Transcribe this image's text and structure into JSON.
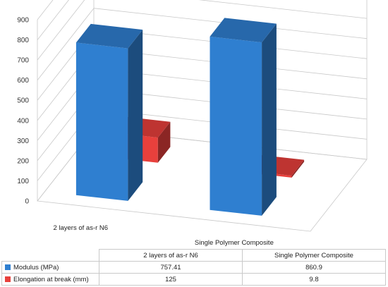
{
  "chart_data": {
    "type": "bar",
    "categories": [
      "2 layers of as-r N6",
      "Single Polymer Composite"
    ],
    "series": [
      {
        "name": "Modulus (MPa)",
        "values": [
          757.41,
          860.9
        ],
        "color": "#2f7fd0"
      },
      {
        "name": "Elongation at break (mm)",
        "values": [
          125,
          9.8
        ],
        "color": "#e8403c"
      }
    ],
    "value_labels": [
      [
        "757.41",
        "860.9"
      ],
      [
        "125",
        "9.8"
      ]
    ],
    "y_ticks": [
      "0",
      "100",
      "200",
      "300",
      "400",
      "500",
      "600",
      "700",
      "800",
      "900"
    ],
    "ylim": [
      0,
      900
    ],
    "grid": true,
    "legend": "data-table",
    "style": "3d-column"
  }
}
